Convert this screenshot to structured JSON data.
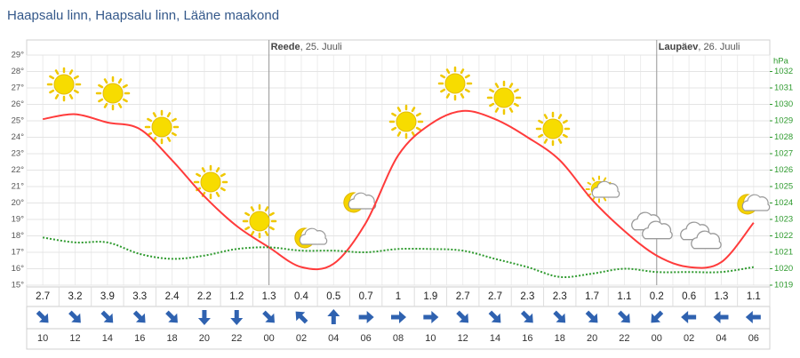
{
  "chart_data": {
    "type": "line",
    "title": "Haapsalu linn, Haapsalu linn, Lääne maakond",
    "categories": [
      "10",
      "12",
      "14",
      "16",
      "18",
      "20",
      "22",
      "00",
      "02",
      "04",
      "06",
      "08",
      "10",
      "12",
      "14",
      "16",
      "18",
      "20",
      "22",
      "00",
      "02",
      "04",
      "06"
    ],
    "day_labels": [
      {
        "day": "Reede",
        "date": ", 25. Juuli"
      },
      {
        "day": "Laupäev",
        "date": ", 26. Juuli"
      }
    ],
    "series": [
      {
        "color": "#ff3b3b",
        "axis": "y",
        "line_style": "solid",
        "values": [
          25.1,
          25.4,
          24.9,
          24.5,
          22.6,
          20.4,
          18.6,
          17.3,
          16.1,
          16.3,
          18.8,
          22.9,
          24.8,
          25.6,
          25.1,
          24.0,
          22.6,
          20.2,
          18.3,
          16.8,
          16.1,
          16.4,
          18.8
        ]
      },
      {
        "color": "#2e9a2e",
        "axis": "y2",
        "line_style": "dotted",
        "values": [
          1021.9,
          1021.6,
          1021.6,
          1020.9,
          1020.6,
          1020.8,
          1021.2,
          1021.3,
          1021.1,
          1021.1,
          1021.0,
          1021.2,
          1021.2,
          1021.1,
          1020.6,
          1020.1,
          1019.5,
          1019.7,
          1020.0,
          1019.8,
          1019.8,
          1019.8,
          1020.1
        ]
      }
    ],
    "wind_speed": [
      2.7,
      3.2,
      3.9,
      3.3,
      2.4,
      2.2,
      1.2,
      1.3,
      0.4,
      0.5,
      0.7,
      1.0,
      1.9,
      2.7,
      2.7,
      2.3,
      2.3,
      1.7,
      1.1,
      0.2,
      0.6,
      1.3,
      1.1
    ],
    "wind_direction": [
      135,
      135,
      135,
      135,
      135,
      180,
      180,
      135,
      315,
      0,
      90,
      90,
      90,
      135,
      135,
      135,
      135,
      135,
      135,
      225,
      270,
      270,
      270
    ],
    "wind_arrow_color": "#2f62b0",
    "ylim": [
      15,
      29
    ],
    "yticks": [
      {
        "value": 15,
        "label": "15°"
      },
      {
        "value": 16,
        "label": "16°"
      },
      {
        "value": 17,
        "label": "17°"
      },
      {
        "value": 18,
        "label": "18°"
      },
      {
        "value": 19,
        "label": "19°"
      },
      {
        "value": 20,
        "label": "20°"
      },
      {
        "value": 21,
        "label": "21°"
      },
      {
        "value": 22,
        "label": "22°"
      },
      {
        "value": 23,
        "label": "23°"
      },
      {
        "value": 24,
        "label": "24°"
      },
      {
        "value": 25,
        "label": "25°"
      },
      {
        "value": 26,
        "label": "26°"
      },
      {
        "value": 27,
        "label": "27°"
      },
      {
        "value": 28,
        "label": "28°"
      },
      {
        "value": 29,
        "label": "29°"
      }
    ],
    "y2_label": "hPa",
    "y2lim": [
      1019,
      1033
    ],
    "y2ticks": [
      1019,
      1020,
      1021,
      1022,
      1023,
      1024,
      1025,
      1026,
      1027,
      1028,
      1029,
      1030,
      1031,
      1032
    ],
    "grid": true
  }
}
